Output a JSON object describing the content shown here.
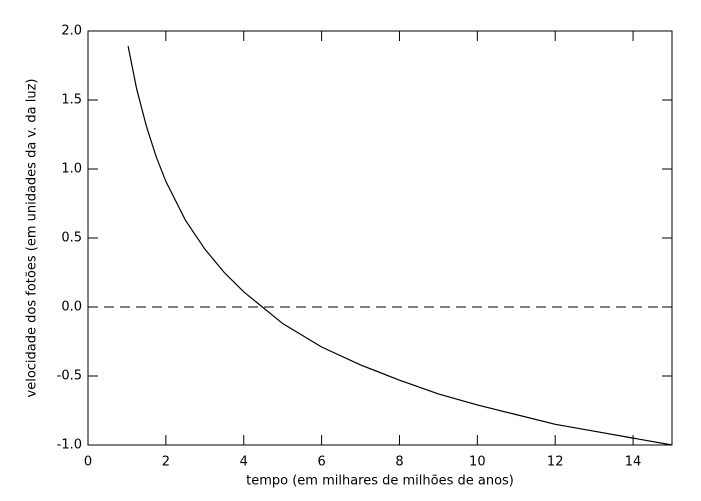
{
  "chart_data": {
    "type": "line",
    "xlabel": "tempo (em milhares de milhões de anos)",
    "ylabel": "velocidade dos fotões (em unidades da v. da luz)",
    "x": [
      1.03,
      1.25,
      1.5,
      1.75,
      2,
      2.5,
      3,
      3.5,
      4,
      5,
      6,
      7,
      8,
      9,
      10,
      11,
      12,
      13,
      14,
      15
    ],
    "series": [
      {
        "color": "#000000",
        "values": [
          1.89,
          1.58,
          1.31,
          1.09,
          0.91,
          0.63,
          0.42,
          0.25,
          0.11,
          -0.12,
          -0.29,
          -0.42,
          -0.53,
          -0.63,
          -0.71,
          -0.78,
          -0.85,
          -0.9,
          -0.95,
          -1.0
        ]
      }
    ],
    "reference_line": 0,
    "xlim": [
      0,
      15
    ],
    "xticks": [
      0,
      2,
      4,
      6,
      8,
      10,
      12,
      14
    ],
    "ylim": [
      -1,
      2
    ],
    "yticks": [
      {
        "value": -1,
        "label": "-1.0"
      },
      {
        "value": -0.5,
        "label": "-0.5"
      },
      {
        "value": 0,
        "label": "0.0"
      },
      {
        "value": 0.5,
        "label": "0.5"
      },
      {
        "value": 1,
        "label": "1.0"
      },
      {
        "value": 1.5,
        "label": "1.5"
      },
      {
        "value": 2,
        "label": "2.0"
      }
    ]
  }
}
